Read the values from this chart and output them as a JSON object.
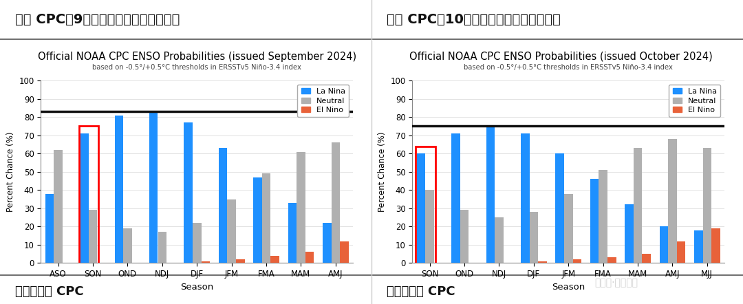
{
  "left_chart": {
    "title": "Official NOAA CPC ENSO Probabilities (issued September 2024)",
    "subtitle": "based on -0.5°/+0.5°C thresholds in ERSSTv5 Niño-3.4 index",
    "seasons": [
      "ASO",
      "SON",
      "OND",
      "NDJ",
      "DJF",
      "JFM",
      "FMA",
      "MAM",
      "AMJ"
    ],
    "la_nina": [
      38,
      71,
      81,
      83,
      77,
      63,
      47,
      33,
      22
    ],
    "neutral": [
      62,
      29,
      19,
      17,
      22,
      35,
      49,
      61,
      66
    ],
    "el_nino": [
      0,
      0,
      0,
      0,
      1,
      2,
      4,
      6,
      12
    ],
    "hline": 83,
    "highlight_index": 1
  },
  "right_chart": {
    "title": "Official NOAA CPC ENSO Probabilities (issued October 2024)",
    "subtitle": "based on -0.5°/+0.5°C thresholds in ERSSTv5 Niño-3.4 index",
    "seasons": [
      "SON",
      "OND",
      "NDJ",
      "DJF",
      "JFM",
      "FMA",
      "MAM",
      "AMJ",
      "MJJ"
    ],
    "la_nina": [
      60,
      71,
      75,
      71,
      60,
      46,
      32,
      20,
      18
    ],
    "neutral": [
      40,
      29,
      25,
      28,
      38,
      51,
      63,
      68,
      63
    ],
    "el_nino": [
      0,
      0,
      0,
      1,
      2,
      3,
      5,
      12,
      19
    ],
    "hline": 75,
    "highlight_index": 0
  },
  "colors": {
    "la_nina": "#1E90FF",
    "neutral": "#B0B0B0",
    "el_nino": "#E8623A",
    "hline": "#111111",
    "highlight_box": "#FF0000",
    "background": "#FFFFFF",
    "header_line": "#555555",
    "footer_line": "#555555"
  },
  "header_left": "图： CPC于9月公布全球拉尼娜气候概率",
  "header_right": "图： CPC于10月公布全球拉尼娜气候概率",
  "footer_left": "图表来源： CPC",
  "footer_right": "图表来源： CPC",
  "watermark": "公众号·国富研究",
  "ylim": [
    0,
    100
  ],
  "yticks": [
    0,
    10,
    20,
    30,
    40,
    50,
    60,
    70,
    80,
    90,
    100
  ],
  "bar_width": 0.25,
  "legend_labels": [
    "La Nina",
    "Neutral",
    "El Nino"
  ]
}
